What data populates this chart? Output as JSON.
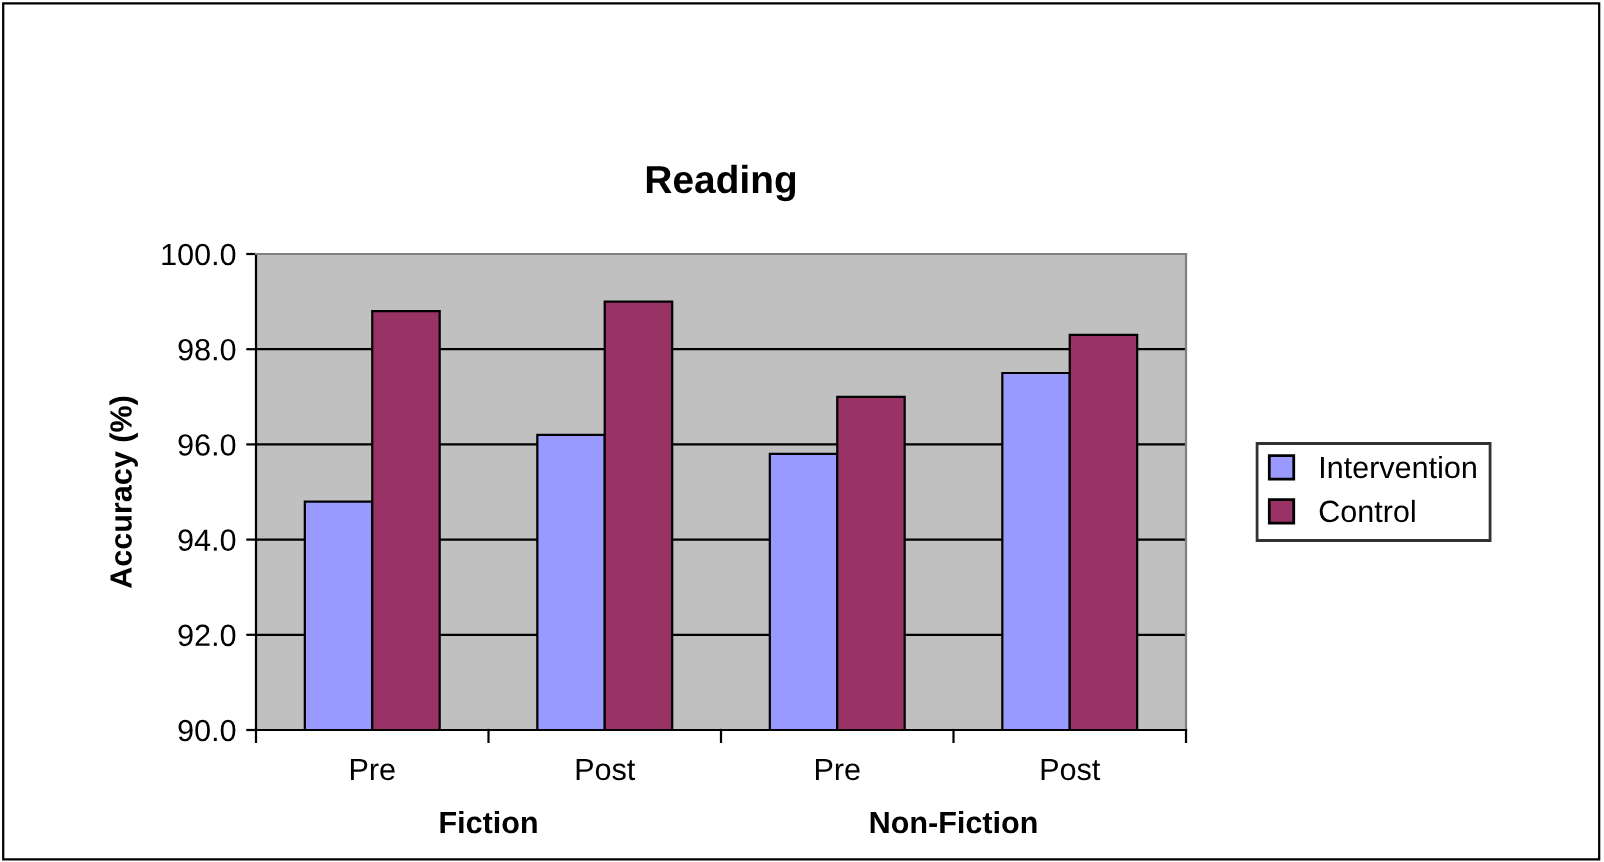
{
  "chart_data": {
    "type": "bar",
    "title": "Reading",
    "ylabel": "Accuracy (%)",
    "categories": [
      "Pre",
      "Post",
      "Pre",
      "Post"
    ],
    "series": [
      {
        "name": "Intervention",
        "color": "#9999ff",
        "values": [
          94.8,
          96.2,
          95.8,
          97.5
        ]
      },
      {
        "name": "Control",
        "color": "#993366",
        "values": [
          98.8,
          99.0,
          97.0,
          98.3
        ]
      }
    ],
    "annotations": [
      "Fiction",
      "Non-Fiction"
    ],
    "ylim": [
      90,
      100
    ],
    "yticks": [
      {
        "value": 90,
        "label": "90.0"
      },
      {
        "value": 92,
        "label": "92.0"
      },
      {
        "value": 94,
        "label": "94.0"
      },
      {
        "value": 96,
        "label": "96.0"
      },
      {
        "value": 98,
        "label": "98.0"
      },
      {
        "value": 100,
        "label": "100.0"
      }
    ],
    "grid": "y",
    "legend": "right"
  }
}
